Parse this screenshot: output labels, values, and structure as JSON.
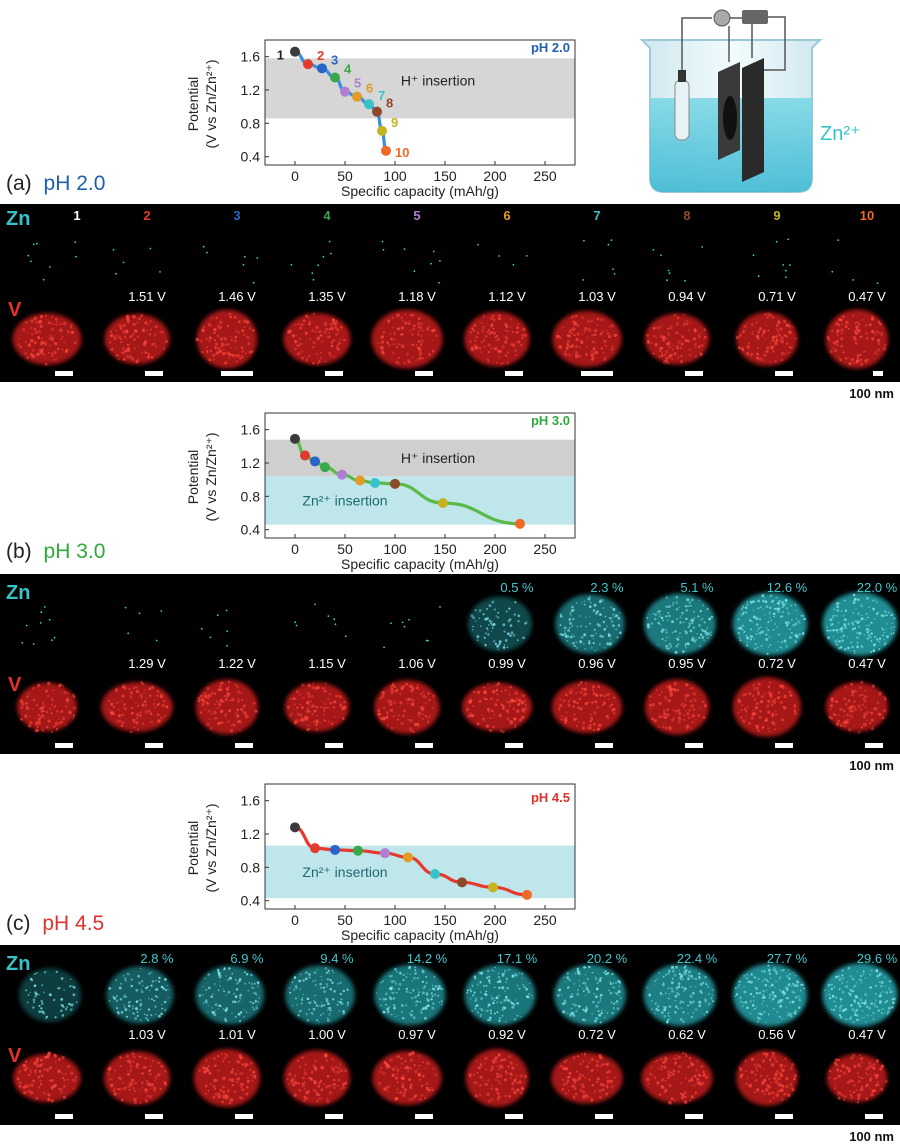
{
  "plots": [
    {
      "id": "a",
      "ylabel_line1": "Potential",
      "ylabel_line2": "(V vs Zn/Zn²⁺)",
      "xlabel": "Specific capacity (mAh/g)",
      "ph_label": "pH 2.0",
      "ph_color": "#1f5fb0",
      "line_color": "#3a8fd8",
      "xticks": [
        "0",
        "50",
        "100",
        "150",
        "200",
        "250"
      ],
      "yticks": [
        "0.4",
        "0.8",
        "1.2",
        "1.6"
      ],
      "bands": [
        {
          "label": "H⁺ insertion",
          "kind": "grey",
          "y0": 0.86,
          "y1": 1.58,
          "fade": true
        }
      ],
      "points": [
        [
          0,
          1.66
        ],
        [
          13,
          1.51
        ],
        [
          27,
          1.46
        ],
        [
          40,
          1.35
        ],
        [
          50,
          1.18
        ],
        [
          62,
          1.12
        ],
        [
          74,
          1.03
        ],
        [
          82,
          0.94
        ],
        [
          87,
          0.71
        ],
        [
          91,
          0.47
        ]
      ],
      "point_labels": [
        "1",
        "2",
        "3",
        "4",
        "5",
        "6",
        "7",
        "8",
        "9",
        "10"
      ]
    },
    {
      "id": "b",
      "ylabel_line1": "Potential",
      "ylabel_line2": "(V vs Zn/Zn²⁺)",
      "xlabel": "Specific capacity (mAh/g)",
      "ph_label": "pH 3.0",
      "ph_color": "#2eaa3d",
      "line_color": "#59b949",
      "xticks": [
        "0",
        "50",
        "100",
        "150",
        "200",
        "250"
      ],
      "yticks": [
        "0.4",
        "0.8",
        "1.2",
        "1.6"
      ],
      "bands": [
        {
          "label": "H⁺ insertion",
          "kind": "grey",
          "y0": 1.04,
          "y1": 1.48,
          "fade": false
        },
        {
          "label": "Zn²⁺ insertion",
          "kind": "cyan",
          "y0": 0.46,
          "y1": 1.04,
          "fade": false
        }
      ],
      "points": [
        [
          0,
          1.49
        ],
        [
          10,
          1.29
        ],
        [
          20,
          1.22
        ],
        [
          30,
          1.15
        ],
        [
          47,
          1.06
        ],
        [
          65,
          0.99
        ],
        [
          80,
          0.96
        ],
        [
          100,
          0.95
        ],
        [
          148,
          0.72
        ],
        [
          225,
          0.47
        ]
      ],
      "point_labels": []
    },
    {
      "id": "c",
      "ylabel_line1": "Potential",
      "ylabel_line2": "(V vs Zn/Zn²⁺)",
      "xlabel": "Specific capacity (mAh/g)",
      "ph_label": "pH 4.5",
      "ph_color": "#e0312a",
      "line_color": "#e8392f",
      "xticks": [
        "0",
        "50",
        "100",
        "150",
        "200",
        "250"
      ],
      "yticks": [
        "0.4",
        "0.8",
        "1.2",
        "1.6"
      ],
      "bands": [
        {
          "label": "Zn²⁺ insertion",
          "kind": "cyan",
          "y0": 0.43,
          "y1": 1.06,
          "fade": false
        }
      ],
      "points": [
        [
          0,
          1.28
        ],
        [
          20,
          1.03
        ],
        [
          40,
          1.01
        ],
        [
          63,
          1.0
        ],
        [
          90,
          0.97
        ],
        [
          113,
          0.92
        ],
        [
          140,
          0.72
        ],
        [
          167,
          0.62
        ],
        [
          198,
          0.56
        ],
        [
          232,
          0.47
        ]
      ],
      "point_labels": []
    }
  ],
  "point_colors": [
    "#3b3b3b",
    "#e23a2e",
    "#2b63c6",
    "#3aa84a",
    "#b07fd4",
    "#e39b25",
    "#38c3c9",
    "#8d4a2a",
    "#c4b420",
    "#f06a25"
  ],
  "beaker": {
    "label": "Zn²⁺"
  },
  "strips": [
    {
      "panel": "(a)",
      "ph": "pH 2.0",
      "ph_color": "#1f5fb0",
      "zn_tag": "Zn",
      "v_tag": "V",
      "numbers": [
        "1",
        "2",
        "3",
        "4",
        "5",
        "6",
        "7",
        "8",
        "9",
        "10"
      ],
      "zn_percent": [
        "",
        "",
        "",
        "",
        "",
        "",
        "",
        "",
        "",
        ""
      ],
      "voltages": [
        "",
        "1.51 V",
        "1.46 V",
        "1.35 V",
        "1.18 V",
        "1.12 V",
        "1.03 V",
        "0.94 V",
        "0.71 V",
        "0.47 V"
      ],
      "zn_intensity": [
        0.02,
        0.02,
        0.02,
        0.02,
        0.03,
        0.02,
        0.03,
        0.04,
        0.03,
        0.05
      ],
      "scale": "100 nm"
    },
    {
      "panel": "(b)",
      "ph": "pH 3.0",
      "ph_color": "#2eaa3d",
      "zn_tag": "Zn",
      "v_tag": "V",
      "numbers": [],
      "zn_percent": [
        "",
        "",
        "",
        "",
        "",
        "0.5 %",
        "2.3 %",
        "5.1 %",
        "12.6 %",
        "22.0 %"
      ],
      "voltages": [
        "",
        "1.29 V",
        "1.22 V",
        "1.15 V",
        "1.06 V",
        "0.99 V",
        "0.96 V",
        "0.95 V",
        "0.72 V",
        "0.47 V"
      ],
      "zn_intensity": [
        0.02,
        0.02,
        0.02,
        0.02,
        0.03,
        0.25,
        0.6,
        0.75,
        0.9,
        0.95
      ],
      "scale": "100 nm"
    },
    {
      "panel": "(c)",
      "ph": "pH 4.5",
      "ph_color": "#e0312a",
      "zn_tag": "Zn",
      "v_tag": "V",
      "numbers": [],
      "zn_percent": [
        "",
        "2.8 %",
        "6.9 %",
        "9.4 %",
        "14.2 %",
        "17.1 %",
        "20.2 %",
        "22.4 %",
        "27.7 %",
        "29.6 %"
      ],
      "voltages": [
        "",
        "1.03 V",
        "1.01 V",
        "1.00 V",
        "0.97 V",
        "0.92 V",
        "0.72 V",
        "0.62 V",
        "0.56 V",
        "0.47 V"
      ],
      "zn_intensity": [
        0.15,
        0.45,
        0.55,
        0.6,
        0.7,
        0.7,
        0.75,
        0.8,
        0.9,
        0.95
      ],
      "scale": "100 nm"
    }
  ]
}
